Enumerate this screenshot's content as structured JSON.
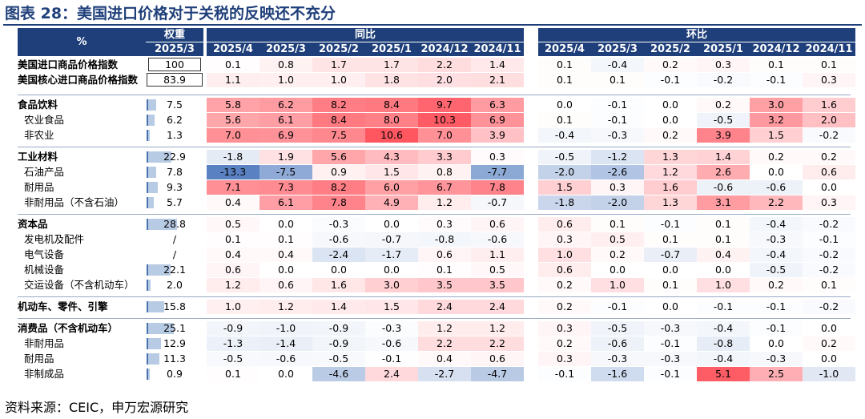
{
  "title": "图表 28：美国进口价格对于关税的反映还不充分",
  "source": "资料来源：CEIC，申万宏源研究",
  "header": {
    "pct": "%",
    "weight": "权重",
    "weight_period": "2025/3",
    "yoy": "同比",
    "mom": "环比",
    "months": [
      "2025/4",
      "2025/3",
      "2025/2",
      "2025/1",
      "2024/12",
      "2024/11"
    ]
  },
  "chart_data": {
    "type": "table",
    "columns": [
      "权重 2025/3",
      "同比 2025/4",
      "同比 2025/3",
      "同比 2025/2",
      "同比 2025/1",
      "同比 2024/12",
      "同比 2024/11",
      "环比 2025/4",
      "环比 2025/3",
      "环比 2025/2",
      "环比 2025/1",
      "环比 2024/12",
      "环比 2024/11"
    ],
    "rows": [
      {
        "label": "美国进口商品价格指数",
        "bold": true,
        "boxed": true,
        "weight": "100",
        "yoy": [
          0.1,
          0.8,
          1.7,
          1.7,
          2.2,
          1.4
        ],
        "mom": [
          0.1,
          -0.4,
          0.2,
          0.3,
          0.1,
          0.1
        ]
      },
      {
        "label": "美国核心进口商品价格指数",
        "bold": true,
        "boxed": true,
        "weight": "83.9",
        "yoy": [
          1.1,
          1.0,
          1.0,
          1.8,
          2.0,
          2.1
        ],
        "mom": [
          0.1,
          0.1,
          -0.1,
          -0.2,
          -0.1,
          0.3
        ]
      },
      {
        "label": "食品饮料",
        "bold": true,
        "weight": "7.5",
        "yoy": [
          5.8,
          6.2,
          8.2,
          8.4,
          9.7,
          6.3
        ],
        "mom": [
          0.0,
          -0.1,
          0.0,
          0.2,
          3.0,
          1.6
        ]
      },
      {
        "label": "农业食品",
        "bold": false,
        "weight": "6.2",
        "yoy": [
          5.6,
          6.1,
          8.4,
          8.0,
          10.3,
          6.9
        ],
        "mom": [
          0.1,
          -0.1,
          0.0,
          -0.5,
          3.2,
          2.0
        ]
      },
      {
        "label": "非农业",
        "bold": false,
        "weight": "1.3",
        "yoy": [
          7.0,
          6.9,
          7.5,
          10.6,
          7.0,
          3.9
        ],
        "mom": [
          -0.4,
          -0.3,
          0.2,
          3.9,
          1.5,
          -0.2
        ]
      },
      {
        "label": "工业材料",
        "bold": true,
        "weight": "22.9",
        "yoy": [
          -1.8,
          1.9,
          5.6,
          4.3,
          3.3,
          0.3
        ],
        "mom": [
          -0.5,
          -1.2,
          1.3,
          1.4,
          0.2,
          0.2
        ]
      },
      {
        "label": "石油产品",
        "bold": false,
        "weight": "7.8",
        "yoy": [
          -13.3,
          -7.5,
          0.9,
          1.5,
          0.8,
          -7.7
        ],
        "mom": [
          -2.0,
          -2.6,
          1.2,
          2.6,
          0.0,
          0.6
        ]
      },
      {
        "label": "耐用品",
        "bold": false,
        "weight": "9.3",
        "yoy": [
          7.1,
          7.3,
          8.2,
          6.0,
          6.7,
          7.8
        ],
        "mom": [
          1.5,
          0.3,
          1.6,
          -0.6,
          -0.6,
          0.0
        ]
      },
      {
        "label": "非耐用品（不含石油）",
        "bold": false,
        "weight": "5.7",
        "yoy": [
          0.4,
          6.1,
          7.8,
          4.9,
          1.2,
          -0.7
        ],
        "mom": [
          -1.8,
          -2.0,
          1.3,
          3.1,
          2.2,
          0.3
        ]
      },
      {
        "label": "资本品",
        "bold": true,
        "weight": "28.8",
        "yoy": [
          0.5,
          0.0,
          -0.3,
          0.0,
          0.3,
          0.6
        ],
        "mom": [
          0.6,
          0.1,
          -0.1,
          0.1,
          -0.4,
          -0.2
        ]
      },
      {
        "label": "发电机及配件",
        "bold": false,
        "weight": "/",
        "yoy": [
          0.1,
          0.1,
          -0.6,
          -0.7,
          -0.8,
          -0.6
        ],
        "mom": [
          0.3,
          0.5,
          0.1,
          0.1,
          -0.3,
          -0.1
        ]
      },
      {
        "label": "电气设备",
        "bold": false,
        "weight": "/",
        "yoy": [
          0.4,
          0.4,
          -2.4,
          -1.7,
          0.6,
          1.1
        ],
        "mom": [
          1.0,
          0.2,
          -0.7,
          0.4,
          -0.4,
          -0.2
        ]
      },
      {
        "label": "机械设备",
        "bold": false,
        "weight": "22.1",
        "yoy": [
          0.6,
          0.0,
          0.0,
          0.0,
          0.1,
          0.5
        ],
        "mom": [
          0.6,
          0.0,
          0.0,
          0.0,
          -0.5,
          -0.2
        ]
      },
      {
        "label": "交运设备（不含机动车）",
        "bold": false,
        "weight": "2.0",
        "yoy": [
          1.2,
          0.6,
          1.6,
          3.0,
          3.5,
          3.5
        ],
        "mom": [
          0.2,
          1.0,
          0.1,
          1.0,
          0.2,
          0.1
        ]
      },
      {
        "label": "机动车、零件、引擎",
        "bold": true,
        "weight": "15.8",
        "yoy": [
          1.0,
          1.2,
          1.4,
          1.5,
          2.4,
          2.4
        ],
        "mom": [
          0.2,
          -0.1,
          0.0,
          -0.1,
          -0.1,
          -0.2
        ]
      },
      {
        "label": "消费品（不含机动车）",
        "bold": true,
        "weight": "25.1",
        "yoy": [
          -0.9,
          -1.0,
          -0.9,
          -0.3,
          1.2,
          1.2
        ],
        "mom": [
          0.3,
          -0.5,
          -0.3,
          -0.4,
          -0.1,
          0.0
        ]
      },
      {
        "label": "非耐用品",
        "bold": false,
        "weight": "12.9",
        "yoy": [
          -1.3,
          -1.4,
          -0.9,
          -0.6,
          2.2,
          2.2
        ],
        "mom": [
          0.2,
          -0.6,
          -0.1,
          -0.8,
          0.0,
          0.2
        ]
      },
      {
        "label": "耐用品",
        "bold": false,
        "weight": "11.3",
        "yoy": [
          -0.5,
          -0.6,
          -0.5,
          -0.1,
          0.4,
          0.6
        ],
        "mom": [
          0.3,
          -0.3,
          -0.3,
          -0.4,
          -0.3,
          0.0
        ]
      },
      {
        "label": "非制成品",
        "bold": false,
        "weight": "0.9",
        "yoy": [
          0.1,
          0.0,
          -4.6,
          2.4,
          -2.7,
          -4.7
        ],
        "mom": [
          -0.1,
          -1.6,
          -0.1,
          5.1,
          2.5,
          -1.0
        ]
      }
    ]
  },
  "colors": {
    "header_bg": "#1f3f7a",
    "positive_max": "#e8404a",
    "negative_max": "#5b83c4",
    "weight_bar": "#b8cbe4"
  }
}
